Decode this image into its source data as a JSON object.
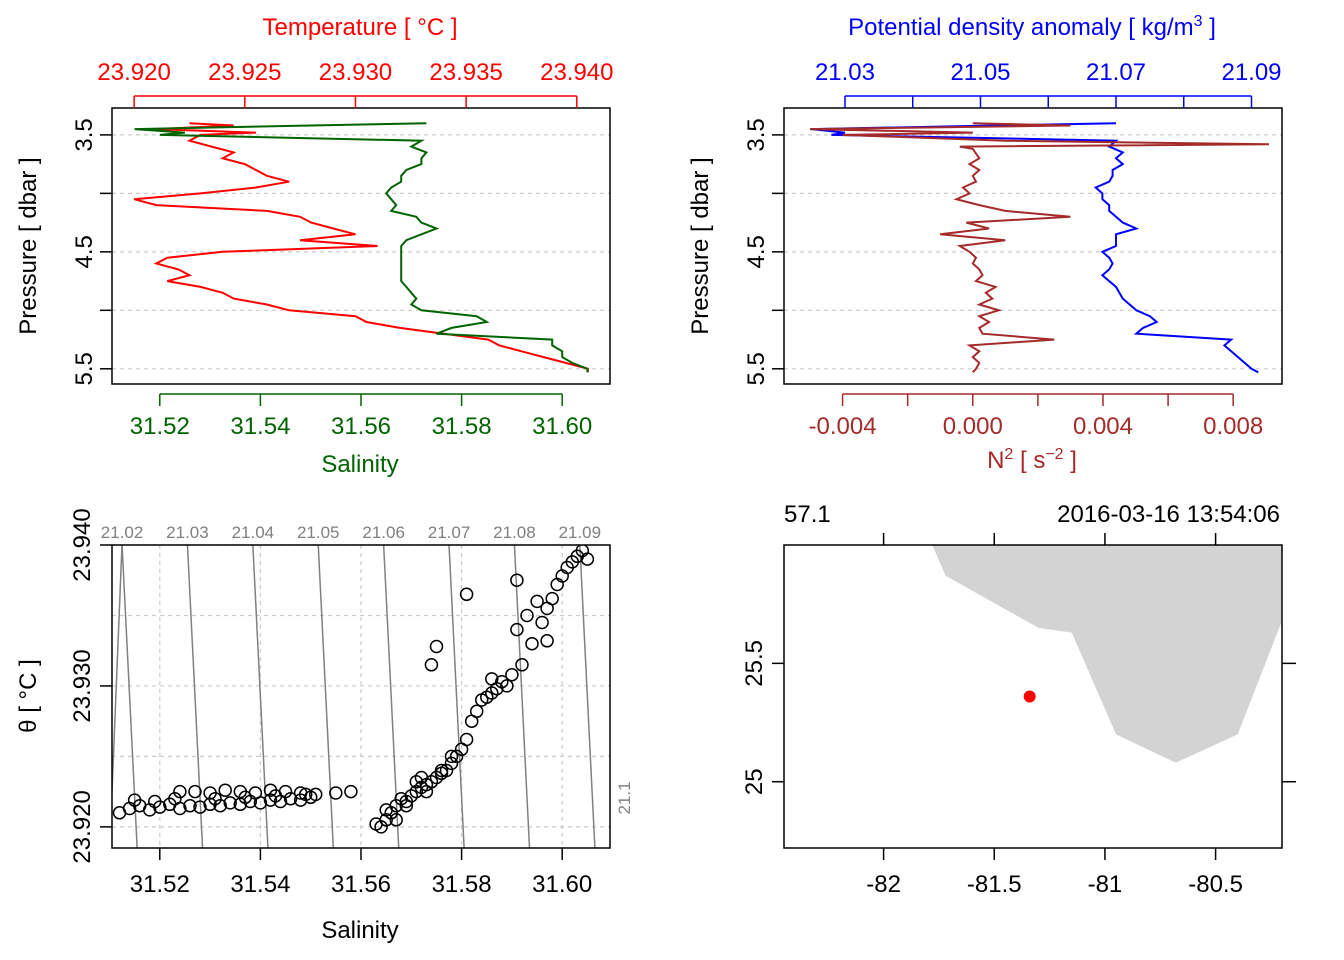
{
  "colors": {
    "temperature": "#ff0000",
    "salinity": "#006400",
    "density": "#0000ff",
    "n2": "#a52a2a",
    "grid": "#cccccc",
    "isopycnal": "#808080",
    "land": "#d3d3d3",
    "station": "#ff0000"
  },
  "chart_data": [
    {
      "id": "profile-TS",
      "type": "line",
      "title": "Temperature [ °C ]",
      "top_axis": {
        "label": "Temperature [ °C ]",
        "ticks": [
          "23.920",
          "23.925",
          "23.930",
          "23.935",
          "23.940"
        ],
        "tick_values": [
          23.92,
          23.925,
          23.93,
          23.935,
          23.94
        ],
        "range": [
          23.919,
          23.9415
        ]
      },
      "bottom_axis": {
        "label": "Salinity",
        "ticks": [
          "31.52",
          "31.54",
          "31.56",
          "31.58",
          "31.60"
        ],
        "tick_values": [
          31.52,
          31.54,
          31.56,
          31.58,
          31.6
        ],
        "range": [
          31.5105,
          31.6095
        ]
      },
      "left_axis": {
        "label": "Pressure [ dbar ]",
        "ticks": [
          "3.5",
          "4.5",
          "5.5"
        ],
        "tick_values": [
          3.5,
          4.5,
          5.5
        ],
        "minor_ticks": [
          4.0,
          5.0
        ],
        "range": [
          3.27,
          5.63
        ],
        "reversed": true
      },
      "series": [
        {
          "name": "Temperature",
          "color": "#ff0000",
          "pressure": [
            3.4,
            3.42,
            3.45,
            3.48,
            3.5,
            3.55,
            3.6,
            3.65,
            3.7,
            3.75,
            3.8,
            3.85,
            3.9,
            3.95,
            4.0,
            4.05,
            4.1,
            4.15,
            4.2,
            4.25,
            4.3,
            4.35,
            4.4,
            4.45,
            4.5,
            4.55,
            4.6,
            4.65,
            4.7,
            4.75,
            4.8,
            4.85,
            4.9,
            4.95,
            5.0,
            5.05,
            5.1,
            5.15,
            5.2,
            5.25,
            5.3,
            5.35,
            5.4,
            5.45,
            5.5,
            5.53
          ],
          "values": [
            23.9225,
            23.9245,
            23.921,
            23.9255,
            23.923,
            23.9225,
            23.9235,
            23.9245,
            23.924,
            23.925,
            23.9255,
            23.926,
            23.927,
            23.9255,
            23.923,
            23.92,
            23.921,
            23.926,
            23.9275,
            23.928,
            23.929,
            23.93,
            23.9275,
            23.931,
            23.924,
            23.9215,
            23.921,
            23.922,
            23.9225,
            23.9215,
            23.923,
            23.924,
            23.9245,
            23.926,
            23.927,
            23.93,
            23.9305,
            23.932,
            23.934,
            23.936,
            23.9365,
            23.9375,
            23.9385,
            23.9395,
            23.9405,
            23.9405
          ]
        },
        {
          "name": "Salinity",
          "color": "#006400",
          "pressure": [
            3.4,
            3.42,
            3.45,
            3.48,
            3.5,
            3.55,
            3.6,
            3.65,
            3.7,
            3.75,
            3.8,
            3.85,
            3.9,
            3.95,
            4.0,
            4.05,
            4.1,
            4.15,
            4.2,
            4.25,
            4.3,
            4.35,
            4.4,
            4.45,
            4.5,
            4.55,
            4.6,
            4.65,
            4.7,
            4.75,
            4.8,
            4.85,
            4.9,
            4.95,
            5.0,
            5.05,
            5.1,
            5.15,
            5.2,
            5.25,
            5.3,
            5.35,
            5.4,
            5.45,
            5.5,
            5.53
          ],
          "values": [
            31.573,
            31.55,
            31.515,
            31.525,
            31.52,
            31.572,
            31.57,
            31.573,
            31.572,
            31.572,
            31.569,
            31.568,
            31.568,
            31.566,
            31.565,
            31.566,
            31.567,
            31.566,
            31.571,
            31.572,
            31.575,
            31.572,
            31.569,
            31.568,
            31.568,
            31.568,
            31.568,
            31.568,
            31.568,
            31.568,
            31.569,
            31.57,
            31.571,
            31.57,
            31.572,
            31.583,
            31.585,
            31.578,
            31.575,
            31.598,
            31.598,
            31.6,
            31.6,
            31.602,
            31.605,
            31.605
          ]
        }
      ]
    },
    {
      "id": "profile-density",
      "type": "line",
      "title": "Potential density anomaly [ kg/m3 ]",
      "top_axis": {
        "label": "Potential density anomaly [ kg/m",
        "label_sup": "3",
        "label_tail": " ]",
        "ticks": [
          "21.03",
          "21.05",
          "21.07",
          "21.09"
        ],
        "tick_values": [
          21.03,
          21.05,
          21.07,
          21.09
        ],
        "minor_ticks": [
          21.04,
          21.06,
          21.08
        ],
        "range": [
          21.021,
          21.0945
        ]
      },
      "bottom_axis": {
        "label": "N",
        "label_sup": "2",
        "label_tail": " [ s",
        "label_sup2": "−2",
        "label_tail2": " ]",
        "ticks": [
          "-0.004",
          "0.000",
          "0.004",
          "0.008"
        ],
        "tick_values": [
          -0.004,
          0.0,
          0.004,
          0.008
        ],
        "minor_ticks": [
          -0.002,
          0.002,
          0.006
        ],
        "range": [
          -0.0058,
          0.0095
        ]
      },
      "left_axis": {
        "label": "Pressure [ dbar ]",
        "ticks": [
          "3.5",
          "4.5",
          "5.5"
        ],
        "tick_values": [
          3.5,
          4.5,
          5.5
        ],
        "minor_ticks": [
          4.0,
          5.0
        ],
        "range": [
          3.27,
          5.63
        ],
        "reversed": true
      },
      "series": [
        {
          "name": "Potential density anomaly",
          "color": "#0000ff",
          "pressure": [
            3.4,
            3.42,
            3.45,
            3.48,
            3.5,
            3.55,
            3.6,
            3.65,
            3.7,
            3.75,
            3.8,
            3.85,
            3.9,
            3.95,
            4.0,
            4.05,
            4.1,
            4.15,
            4.2,
            4.25,
            4.3,
            4.35,
            4.4,
            4.45,
            4.5,
            4.55,
            4.6,
            4.65,
            4.7,
            4.75,
            4.8,
            4.85,
            4.9,
            4.95,
            5.0,
            5.05,
            5.1,
            5.15,
            5.2,
            5.25,
            5.3,
            5.35,
            5.4,
            5.45,
            5.5,
            5.53
          ],
          "values": [
            21.07,
            21.052,
            21.025,
            21.03,
            21.028,
            21.07,
            21.069,
            21.071,
            21.07,
            21.071,
            21.0695,
            21.0695,
            21.069,
            21.067,
            21.068,
            21.068,
            21.069,
            21.069,
            21.07,
            21.071,
            21.073,
            21.07,
            21.07,
            21.07,
            21.068,
            21.069,
            21.0695,
            21.069,
            21.068,
            21.069,
            21.07,
            21.0705,
            21.071,
            21.072,
            21.073,
            21.075,
            21.076,
            21.074,
            21.073,
            21.087,
            21.086,
            21.087,
            21.088,
            21.089,
            21.09,
            21.091
          ]
        },
        {
          "name": "N2",
          "color": "#a52a2a",
          "pressure": [
            3.4,
            3.42,
            3.45,
            3.48,
            3.5,
            3.55,
            3.58,
            3.6,
            3.62,
            3.7,
            3.75,
            3.8,
            3.85,
            3.9,
            3.95,
            4.0,
            4.05,
            4.1,
            4.15,
            4.2,
            4.25,
            4.3,
            4.35,
            4.4,
            4.45,
            4.5,
            4.55,
            4.6,
            4.65,
            4.7,
            4.75,
            4.8,
            4.85,
            4.9,
            4.95,
            5.0,
            5.05,
            5.1,
            5.15,
            5.2,
            5.25,
            5.3,
            5.35,
            5.4,
            5.45,
            5.5,
            5.53
          ],
          "values": [
            0.0,
            0.003,
            -0.005,
            0.0,
            -0.004,
            0.001,
            0.0091,
            -0.0004,
            0.0,
            0.0002,
            -0.0001,
            0.0002,
            0.0,
            0.0001,
            -0.0003,
            -0.0001,
            -0.0005,
            0.0002,
            0.001,
            0.003,
            -0.0002,
            0.0005,
            -0.001,
            0.001,
            -0.0004,
            -0.0001,
            0.0001,
            0.0,
            0.0002,
            0.0003,
            0.0001,
            0.0007,
            0.0004,
            0.0006,
            0.0002,
            0.0008,
            0.0002,
            0.0005,
            0.0002,
            0.0003,
            0.0025,
            -0.0001,
            0.0002,
            0.0,
            0.0002,
            0.0001,
            0.0
          ]
        }
      ]
    },
    {
      "id": "ts-diagram",
      "type": "scatter",
      "xlabel": "Salinity",
      "ylabel": "θ [ °C ]",
      "x_ticks": [
        "31.52",
        "31.54",
        "31.56",
        "31.58",
        "31.60"
      ],
      "x_tick_values": [
        31.52,
        31.54,
        31.56,
        31.58,
        31.6
      ],
      "y_ticks": [
        "23.920",
        "23.930",
        "23.940"
      ],
      "y_tick_values": [
        23.92,
        23.93,
        23.94
      ],
      "xlim": [
        31.5105,
        31.6095
      ],
      "ylim": [
        23.9185,
        23.94
      ],
      "isopycnal_labels": [
        "21.02",
        "21.03",
        "21.04",
        "21.05",
        "21.06",
        "21.07",
        "21.08",
        "21.09",
        "21.1"
      ],
      "isopycnal_x_at_bottom": [
        31.5155,
        31.5285,
        31.5415,
        31.5545,
        31.5675,
        31.5805,
        31.5935,
        31.6065
      ],
      "isopycnal_x_at_top": [
        31.5125,
        31.5255,
        31.5385,
        31.5515,
        31.5645,
        31.5775,
        31.5905,
        31.6035
      ],
      "points_x": [
        31.512,
        31.514,
        31.516,
        31.518,
        31.52,
        31.522,
        31.524,
        31.526,
        31.528,
        31.53,
        31.532,
        31.534,
        31.536,
        31.538,
        31.54,
        31.542,
        31.544,
        31.546,
        31.548,
        31.55,
        31.524,
        31.527,
        31.53,
        31.533,
        31.536,
        31.539,
        31.542,
        31.545,
        31.548,
        31.551,
        31.515,
        31.519,
        31.523,
        31.531,
        31.537,
        31.543,
        31.549,
        31.555,
        31.558,
        31.563,
        31.564,
        31.565,
        31.566,
        31.567,
        31.568,
        31.569,
        31.57,
        31.571,
        31.572,
        31.573,
        31.574,
        31.575,
        31.576,
        31.577,
        31.578,
        31.579,
        31.58,
        31.581,
        31.582,
        31.583,
        31.584,
        31.585,
        31.586,
        31.587,
        31.588,
        31.59,
        31.592,
        31.594,
        31.596,
        31.597,
        31.598,
        31.599,
        31.6,
        31.601,
        31.602,
        31.603,
        31.604,
        31.605,
        31.593,
        31.595,
        31.591,
        31.575,
        31.574,
        31.581,
        31.591,
        31.597,
        31.573,
        31.569,
        31.572,
        31.576,
        31.578,
        31.571,
        31.567,
        31.565,
        31.586,
        31.589
      ],
      "points_y": [
        23.921,
        23.9213,
        23.9215,
        23.9212,
        23.9214,
        23.9216,
        23.9213,
        23.9215,
        23.9214,
        23.9216,
        23.9215,
        23.9217,
        23.9216,
        23.9218,
        23.9217,
        23.9219,
        23.9218,
        23.922,
        23.9219,
        23.9221,
        23.9225,
        23.9225,
        23.9224,
        23.9226,
        23.9225,
        23.9224,
        23.9226,
        23.9225,
        23.9224,
        23.9223,
        23.9219,
        23.9218,
        23.922,
        23.922,
        23.9221,
        23.9222,
        23.9223,
        23.9224,
        23.9225,
        23.9202,
        23.92,
        23.9205,
        23.921,
        23.9215,
        23.922,
        23.9218,
        23.9222,
        23.9225,
        23.9228,
        23.923,
        23.9232,
        23.9235,
        23.9238,
        23.924,
        23.9245,
        23.925,
        23.9255,
        23.9262,
        23.9275,
        23.9282,
        23.929,
        23.9292,
        23.9295,
        23.9298,
        23.9303,
        23.9308,
        23.9315,
        23.933,
        23.9345,
        23.9355,
        23.9362,
        23.9372,
        23.9378,
        23.9384,
        23.9388,
        23.9392,
        23.9396,
        23.939,
        23.935,
        23.936,
        23.9375,
        23.9328,
        23.9315,
        23.9365,
        23.934,
        23.9332,
        23.9225,
        23.9215,
        23.9235,
        23.924,
        23.925,
        23.9232,
        23.9205,
        23.9212,
        23.9305,
        23.93
      ]
    },
    {
      "id": "station-map",
      "type": "map",
      "top_left_label": "57.1",
      "top_right_label": "2016-03-16 13:54:06",
      "x_ticks": [
        "-82",
        "-81.5",
        "-81",
        "-80.5"
      ],
      "x_tick_values": [
        -82.0,
        -81.5,
        -81.0,
        -80.5
      ],
      "y_ticks": [
        "25",
        "25.5"
      ],
      "y_tick_values": [
        25.0,
        25.5
      ],
      "xlim": [
        -82.45,
        -80.2
      ],
      "ylim": [
        24.72,
        26.0
      ],
      "land_lon": [
        -81.78,
        -81.72,
        -81.3,
        -81.15,
        -80.95,
        -80.68,
        -80.4,
        -80.2,
        -80.2
      ],
      "land_lat": [
        26.0,
        25.87,
        25.65,
        25.63,
        25.2,
        25.08,
        25.2,
        25.68,
        26.0
      ],
      "station_lon": -81.34,
      "station_lat": 25.36
    }
  ]
}
